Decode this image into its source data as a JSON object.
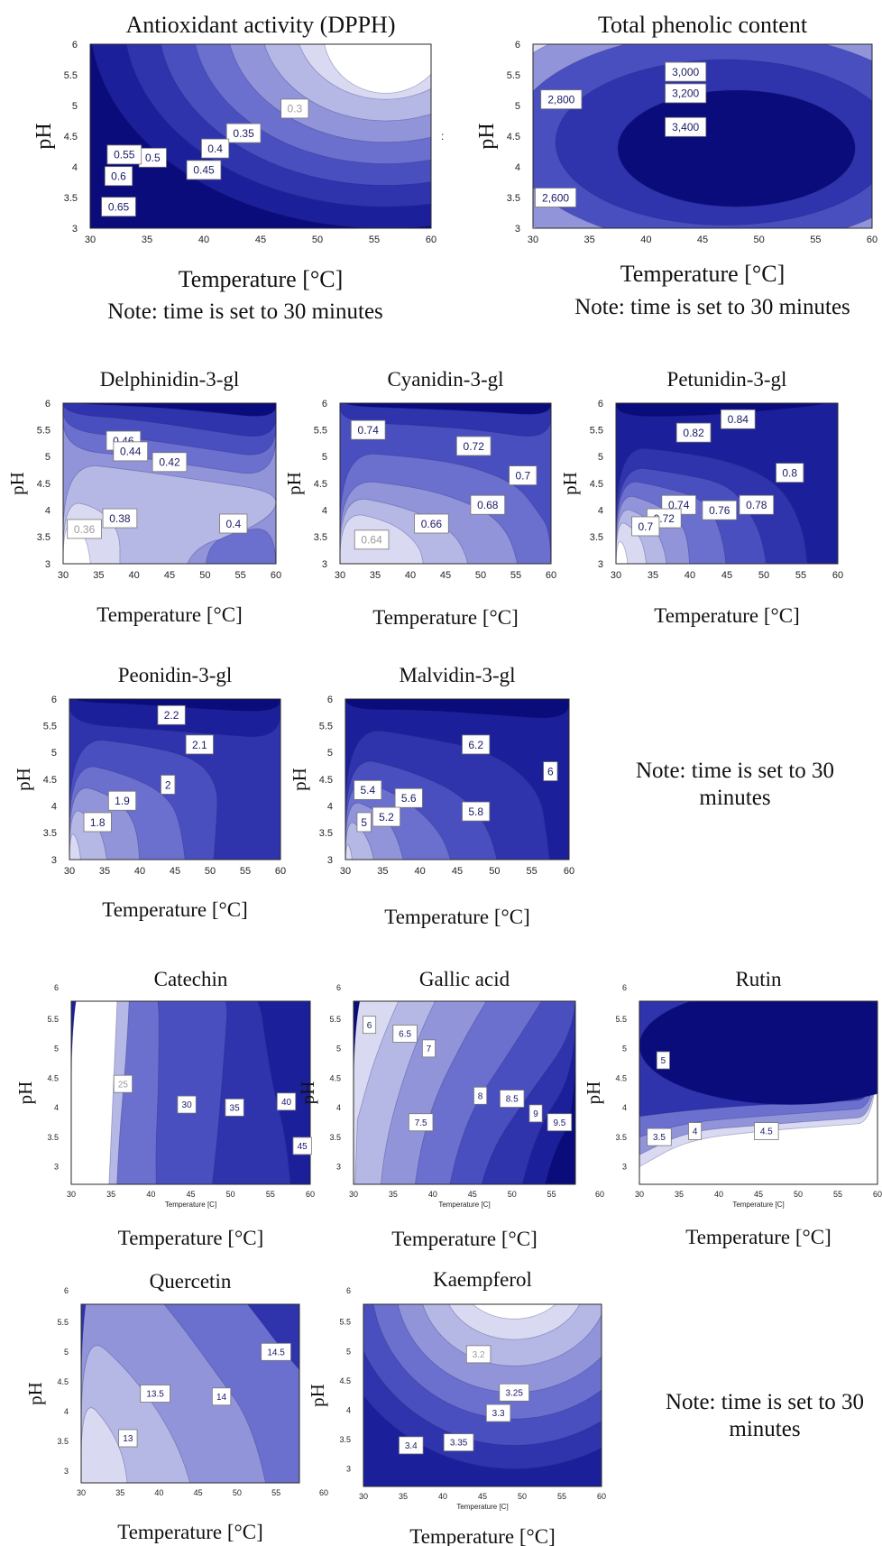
{
  "chart_data": [
    {
      "type": "contour",
      "title": "Antioxidant activity (DPPH)",
      "xlabel": "Temperature [°C]",
      "ylabel": "pH",
      "xlim": [
        30,
        60
      ],
      "ylim": [
        3,
        6
      ],
      "xticks": [
        30,
        35,
        40,
        45,
        50,
        55,
        60
      ],
      "yticks": [
        3,
        3.5,
        4,
        4.5,
        5,
        5.5,
        6
      ],
      "levels": [
        0.3,
        0.35,
        0.4,
        0.45,
        0.5,
        0.55,
        0.6,
        0.65
      ],
      "contour_labels": [
        {
          "text": "0.3",
          "x": 48,
          "y": 4.95
        },
        {
          "text": "0.35",
          "x": 43.5,
          "y": 4.55
        },
        {
          "text": "0.4",
          "x": 41,
          "y": 4.3
        },
        {
          "text": "0.45",
          "x": 40,
          "y": 3.95
        },
        {
          "text": "0.5",
          "x": 35.5,
          "y": 4.15
        },
        {
          "text": "0.55",
          "x": 33,
          "y": 4.2
        },
        {
          "text": "0.6",
          "x": 32.5,
          "y": 3.85
        },
        {
          "text": "0.65",
          "x": 32.5,
          "y": 3.35
        }
      ],
      "note": "Note: time is set to 30 minutes"
    },
    {
      "type": "contour",
      "title": "Total phenolic content",
      "xlabel": "Temperature [°C]",
      "ylabel": "pH",
      "xlim": [
        30,
        60
      ],
      "ylim": [
        3,
        6
      ],
      "xticks": [
        30,
        35,
        40,
        45,
        50,
        55,
        60
      ],
      "yticks": [
        3,
        3.5,
        4,
        4.5,
        5,
        5.5,
        6
      ],
      "levels": [
        2600,
        2800,
        3000,
        3200,
        3400
      ],
      "contour_labels": [
        {
          "text": "2,800",
          "x": 32.5,
          "y": 5.1
        },
        {
          "text": "3,000",
          "x": 43.5,
          "y": 5.55
        },
        {
          "text": "3,200",
          "x": 43.5,
          "y": 5.2
        },
        {
          "text": "3,400",
          "x": 43.5,
          "y": 4.65
        },
        {
          "text": "2,600",
          "x": 32,
          "y": 3.5
        }
      ],
      "note": "Note: time is set to 30 minutes"
    },
    {
      "type": "contour",
      "title": "Delphinidin-3-gl",
      "xlabel": "Temperature [°C]",
      "ylabel": "pH",
      "xlim": [
        30,
        60
      ],
      "ylim": [
        3,
        6
      ],
      "xticks": [
        30,
        35,
        40,
        45,
        50,
        55,
        60
      ],
      "yticks": [
        3,
        3.5,
        4,
        4.5,
        5,
        5.5,
        6
      ],
      "levels": [
        0.36,
        0.38,
        0.4,
        0.42,
        0.44,
        0.46
      ],
      "contour_labels": [
        {
          "text": "0.46",
          "x": 38.5,
          "y": 5.3
        },
        {
          "text": "0.44",
          "x": 39.5,
          "y": 5.1
        },
        {
          "text": "0.42",
          "x": 45,
          "y": 4.9
        },
        {
          "text": "0.38",
          "x": 38,
          "y": 3.85
        },
        {
          "text": "0.36",
          "x": 33,
          "y": 3.65
        },
        {
          "text": "0.4",
          "x": 54,
          "y": 3.75
        }
      ]
    },
    {
      "type": "contour",
      "title": "Cyanidin-3-gl",
      "xlabel": "Temperature [°C]",
      "ylabel": "pH",
      "xlim": [
        30,
        60
      ],
      "ylim": [
        3,
        6
      ],
      "xticks": [
        30,
        35,
        40,
        45,
        50,
        55,
        60
      ],
      "yticks": [
        3,
        3.5,
        4,
        4.5,
        5,
        5.5,
        6
      ],
      "levels": [
        0.64,
        0.66,
        0.68,
        0.7,
        0.72,
        0.74
      ],
      "contour_labels": [
        {
          "text": "0.74",
          "x": 34,
          "y": 5.5
        },
        {
          "text": "0.72",
          "x": 49,
          "y": 5.2
        },
        {
          "text": "0.7",
          "x": 56,
          "y": 4.65
        },
        {
          "text": "0.68",
          "x": 51,
          "y": 4.1
        },
        {
          "text": "0.66",
          "x": 43,
          "y": 3.75
        },
        {
          "text": "0.64",
          "x": 34.5,
          "y": 3.45
        }
      ]
    },
    {
      "type": "contour",
      "title": "Petunidin-3-gl",
      "xlabel": "Temperature [°C]",
      "ylabel": "pH",
      "xlim": [
        30,
        60
      ],
      "ylim": [
        3,
        6
      ],
      "xticks": [
        30,
        35,
        40,
        45,
        50,
        55,
        60
      ],
      "yticks": [
        3,
        3.5,
        4,
        4.5,
        5,
        5.5,
        6
      ],
      "levels": [
        0.7,
        0.72,
        0.74,
        0.76,
        0.78,
        0.8,
        0.82,
        0.84
      ],
      "contour_labels": [
        {
          "text": "0.84",
          "x": 46.5,
          "y": 5.7
        },
        {
          "text": "0.82",
          "x": 40.5,
          "y": 5.45
        },
        {
          "text": "0.8",
          "x": 53.5,
          "y": 4.7
        },
        {
          "text": "0.78",
          "x": 49,
          "y": 4.1
        },
        {
          "text": "0.76",
          "x": 44,
          "y": 4.0
        },
        {
          "text": "0.74",
          "x": 38.5,
          "y": 4.1
        },
        {
          "text": "0.72",
          "x": 36.5,
          "y": 3.85
        },
        {
          "text": "0.7",
          "x": 34,
          "y": 3.7
        }
      ]
    },
    {
      "type": "contour",
      "title": "Peonidin-3-gl",
      "xlabel": "Temperature [°C]",
      "ylabel": "pH",
      "xlim": [
        30,
        60
      ],
      "ylim": [
        3,
        6
      ],
      "xticks": [
        30,
        35,
        40,
        45,
        50,
        55,
        60
      ],
      "yticks": [
        3,
        3.5,
        4,
        4.5,
        5,
        5.5,
        6
      ],
      "levels": [
        1.8,
        1.9,
        2,
        2.1,
        2.2
      ],
      "contour_labels": [
        {
          "text": "2.2",
          "x": 44.5,
          "y": 5.7
        },
        {
          "text": "2.1",
          "x": 48.5,
          "y": 5.15
        },
        {
          "text": "2",
          "x": 44,
          "y": 4.4
        },
        {
          "text": "1.9",
          "x": 37.5,
          "y": 4.1
        },
        {
          "text": "1.8",
          "x": 34,
          "y": 3.7
        }
      ]
    },
    {
      "type": "contour",
      "title": "Malvidin-3-gl",
      "xlabel": "Temperature [°C]",
      "ylabel": "pH",
      "xlim": [
        30,
        60
      ],
      "ylim": [
        3,
        6
      ],
      "xticks": [
        30,
        35,
        40,
        45,
        50,
        55,
        60
      ],
      "yticks": [
        3,
        3.5,
        4,
        4.5,
        5,
        5.5,
        6
      ],
      "levels": [
        5,
        5.2,
        5.4,
        5.6,
        5.8,
        6,
        6.2
      ],
      "contour_labels": [
        {
          "text": "6.2",
          "x": 47.5,
          "y": 5.15
        },
        {
          "text": "6",
          "x": 57.5,
          "y": 4.65
        },
        {
          "text": "5.8",
          "x": 47.5,
          "y": 3.9
        },
        {
          "text": "5.6",
          "x": 38.5,
          "y": 4.15
        },
        {
          "text": "5.4",
          "x": 33,
          "y": 4.3
        },
        {
          "text": "5.2",
          "x": 35.5,
          "y": 3.8
        },
        {
          "text": "5",
          "x": 32.5,
          "y": 3.7
        }
      ]
    },
    {
      "type": "contour",
      "title": "Catechin",
      "xlabel": "Temperature [°C]",
      "ylabel": "pH",
      "xlim": [
        30,
        60
      ],
      "ylim": [
        2.7,
        5.8
      ],
      "xticks": [
        30,
        35,
        40,
        45,
        50,
        55,
        60
      ],
      "yticks": [
        3,
        3.5,
        4,
        4.5,
        5,
        5.5
      ],
      "y_extra_tick": 6,
      "levels": [
        25,
        30,
        35,
        40,
        45
      ],
      "contour_labels": [
        {
          "text": "25",
          "x": 36.5,
          "y": 4.4
        },
        {
          "text": "30",
          "x": 44.5,
          "y": 4.05
        },
        {
          "text": "35",
          "x": 50.5,
          "y": 4.0
        },
        {
          "text": "40",
          "x": 57,
          "y": 4.1
        },
        {
          "text": "45",
          "x": 59,
          "y": 3.35
        }
      ]
    },
    {
      "type": "contour",
      "title": "Gallic acid",
      "xlabel": "Temperature [°C]",
      "ylabel": "pH",
      "xlim": [
        30,
        58
      ],
      "ylim": [
        2.7,
        5.8
      ],
      "xticks": [
        30,
        35,
        40,
        45,
        50,
        55
      ],
      "x_extra_tick": 60,
      "yticks": [
        3,
        3.5,
        4,
        4.5,
        5,
        5.5
      ],
      "y_extra_tick": 6,
      "levels": [
        6,
        6.5,
        7,
        7.5,
        8,
        8.5,
        9,
        9.5
      ],
      "contour_labels": [
        {
          "text": "6",
          "x": 32,
          "y": 5.4
        },
        {
          "text": "6.5",
          "x": 36.5,
          "y": 5.25
        },
        {
          "text": "7",
          "x": 39.5,
          "y": 5.0
        },
        {
          "text": "7.5",
          "x": 38.5,
          "y": 3.75
        },
        {
          "text": "8",
          "x": 46,
          "y": 4.2
        },
        {
          "text": "8.5",
          "x": 50,
          "y": 4.15
        },
        {
          "text": "9",
          "x": 53,
          "y": 3.9
        },
        {
          "text": "9.5",
          "x": 56,
          "y": 3.75
        }
      ]
    },
    {
      "type": "contour",
      "title": "Rutin",
      "xlabel": "Temperature [°C]",
      "ylabel": "pH",
      "xlim": [
        30,
        60
      ],
      "ylim": [
        2.7,
        5.8
      ],
      "xticks": [
        30,
        35,
        40,
        45,
        50,
        55,
        60
      ],
      "yticks": [
        3,
        3.5,
        4,
        4.5,
        5,
        5.5
      ],
      "y_extra_tick": 6,
      "levels": [
        3.5,
        4,
        4.5,
        5
      ],
      "contour_labels": [
        {
          "text": "5",
          "x": 33,
          "y": 4.8
        },
        {
          "text": "4.5",
          "x": 46,
          "y": 3.6
        },
        {
          "text": "4",
          "x": 37,
          "y": 3.6
        },
        {
          "text": "3.5",
          "x": 32.5,
          "y": 3.5
        }
      ]
    },
    {
      "type": "contour",
      "title": "Quercetin",
      "xlabel": "Temperature [°C]",
      "ylabel": "pH",
      "xlim": [
        30,
        58
      ],
      "ylim": [
        2.8,
        5.8
      ],
      "xticks": [
        30,
        35,
        40,
        45,
        50,
        55
      ],
      "x_extra_tick": 60,
      "yticks": [
        3,
        3.5,
        4,
        4.5,
        5,
        5.5
      ],
      "y_extra_tick": 6,
      "levels": [
        13,
        13.5,
        14,
        14.5
      ],
      "contour_labels": [
        {
          "text": "14.5",
          "x": 55,
          "y": 5.0
        },
        {
          "text": "14",
          "x": 48,
          "y": 4.25
        },
        {
          "text": "13.5",
          "x": 39.5,
          "y": 4.3
        },
        {
          "text": "13",
          "x": 36,
          "y": 3.55
        }
      ]
    },
    {
      "type": "contour",
      "title": "Kaempferol",
      "xlabel": "Temperature [°C]",
      "ylabel": "pH",
      "xlim": [
        30,
        60
      ],
      "ylim": [
        2.7,
        5.8
      ],
      "xticks": [
        30,
        35,
        40,
        45,
        50,
        55,
        60
      ],
      "yticks": [
        3,
        3.5,
        4,
        4.5,
        5,
        5.5
      ],
      "y_extra_tick": 6,
      "levels": [
        3.2,
        3.25,
        3.3,
        3.35,
        3.4
      ],
      "contour_labels": [
        {
          "text": "3.2",
          "x": 44.5,
          "y": 4.95
        },
        {
          "text": "3.25",
          "x": 49,
          "y": 4.3
        },
        {
          "text": "3.3",
          "x": 47,
          "y": 3.95
        },
        {
          "text": "3.35",
          "x": 42,
          "y": 3.45
        },
        {
          "text": "3.4",
          "x": 36,
          "y": 3.4
        }
      ]
    }
  ],
  "notes": {
    "dpph": "Note: time is set to 30 minutes",
    "tpc": "Note: time is set to 30 minutes",
    "anthocyanins_1": "Note: time is set to 30",
    "anthocyanins_2": "minutes",
    "flavonoids_1": "Note: time is set to 30",
    "flavonoids_2": "minutes"
  },
  "stray_marks": {
    "colon": ":",
    "small_xlabel": "Temperature [C]"
  },
  "colors": {
    "ramp": [
      "#ffffff",
      "#d9daf2",
      "#b5b8e5",
      "#9194d9",
      "#6b6fcd",
      "#4a4fbf",
      "#2f33ac",
      "#1c1f9a",
      "#0a0c7c"
    ],
    "border": "#2a2a2a",
    "label_dark": "#1a1a66",
    "label_light": "#9a9a9a"
  }
}
